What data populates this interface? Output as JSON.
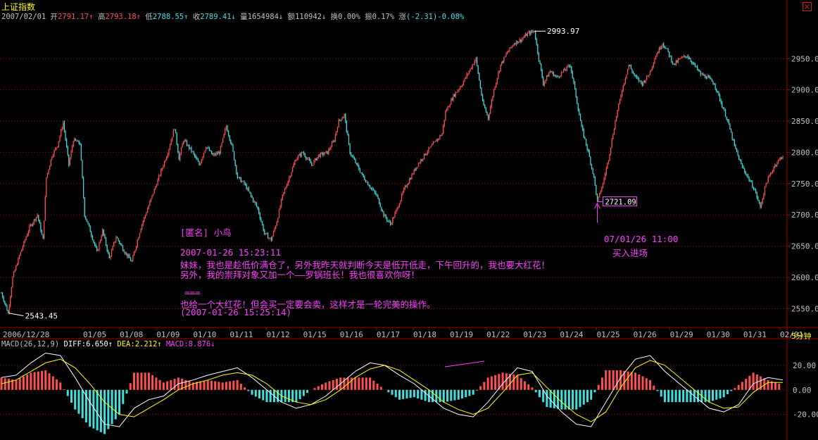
{
  "window": {
    "title": "上证指数"
  },
  "info_bar": {
    "date": "2007/02/01",
    "open_label": "开",
    "open": "2791.17↑",
    "high_label": "高",
    "high": "2793.18↑",
    "low_label": "低",
    "low": "2788.55↑",
    "close_label": "收",
    "close": "2789.41↓",
    "volume_label": "量",
    "volume": "1654984↓",
    "amount_label": "额",
    "amount": "110942↓",
    "turnover_label": "换",
    "turnover": "0.00%",
    "amplitude_label": "振",
    "amplitude": "0.17%",
    "change_label": "涨",
    "change": "(-2.31)-0.08%"
  },
  "period_label": "5分钟",
  "price_labels": {
    "high": "2993.97",
    "low": "2543.45",
    "marked": "2721.09"
  },
  "annotations": {
    "buy_time": "07/01/26 11:00",
    "buy_text": "买入进场",
    "author": "[匿名] 小鸟",
    "post_time": "2007-01-26 15:23:11",
    "line1": "妹妹，我也是趁低价满仓了，另外我昨天就判断今天是低开低走，下午回升的，我也要大红花！",
    "line2": "另外，我的崇拜对象又加一个——罗锅班长！我也很喜欢你呀！",
    "separator": "===",
    "line3": "也给一个大红花！但会买一定要会卖，这样才是一轮完美的操作。",
    "reply_time": "(2007-01-26 15:25:14)"
  },
  "macd_header": {
    "params": "MACD(26,12,9)",
    "diff_label": "DIFF:",
    "diff": "6.650↑",
    "dea_label": "DEA:",
    "dea": "2.212↑",
    "macd_label": "MACD:",
    "macd": "8.876↓"
  },
  "colors": {
    "up": "#ff5050",
    "down": "#40e0e0",
    "grid": "#a00000",
    "diff_line": "#ffffff",
    "dea_line": "#ffff00",
    "annotation": "#ff40ff",
    "axis_text": "#c0c0c0"
  },
  "chart_data": [
    {
      "type": "candlestick",
      "title": "上证指数",
      "x_tick_labels": [
        "2006/12/28",
        "01/05",
        "01/08",
        "01/09",
        "01/10",
        "01/11",
        "01/12",
        "01/15",
        "01/16",
        "01/17",
        "01/18",
        "01/19",
        "01/22",
        "01/23",
        "01/24",
        "01/25",
        "01/26",
        "01/29",
        "01/30",
        "01/31",
        "02/01"
      ],
      "y_tick_labels": [
        "2550.00",
        "2600.00",
        "2650.00",
        "2700.00",
        "2750.00",
        "2800.00",
        "2850.00",
        "2900.00",
        "2950.00"
      ],
      "ylim": [
        2520,
        3010
      ],
      "grid": true,
      "close_path": [
        {
          "x": 0,
          "y": 2575
        },
        {
          "x": 6,
          "y": 2543
        },
        {
          "x": 10,
          "y": 2600
        },
        {
          "x": 17,
          "y": 2640
        },
        {
          "x": 25,
          "y": 2680
        },
        {
          "x": 32,
          "y": 2700
        },
        {
          "x": 37,
          "y": 2660
        },
        {
          "x": 40,
          "y": 2760
        },
        {
          "x": 45,
          "y": 2795
        },
        {
          "x": 50,
          "y": 2812
        },
        {
          "x": 55,
          "y": 2848
        },
        {
          "x": 60,
          "y": 2780
        },
        {
          "x": 64,
          "y": 2820
        },
        {
          "x": 70,
          "y": 2814
        },
        {
          "x": 74,
          "y": 2700
        },
        {
          "x": 78,
          "y": 2680
        },
        {
          "x": 85,
          "y": 2640
        },
        {
          "x": 90,
          "y": 2675
        },
        {
          "x": 96,
          "y": 2630
        },
        {
          "x": 102,
          "y": 2665
        },
        {
          "x": 110,
          "y": 2640
        },
        {
          "x": 116,
          "y": 2625
        },
        {
          "x": 124,
          "y": 2680
        },
        {
          "x": 132,
          "y": 2720
        },
        {
          "x": 140,
          "y": 2760
        },
        {
          "x": 148,
          "y": 2800
        },
        {
          "x": 154,
          "y": 2840
        },
        {
          "x": 158,
          "y": 2790
        },
        {
          "x": 162,
          "y": 2820
        },
        {
          "x": 170,
          "y": 2800
        },
        {
          "x": 176,
          "y": 2780
        },
        {
          "x": 182,
          "y": 2810
        },
        {
          "x": 188,
          "y": 2795
        },
        {
          "x": 194,
          "y": 2800
        },
        {
          "x": 200,
          "y": 2842
        },
        {
          "x": 205,
          "y": 2810
        },
        {
          "x": 210,
          "y": 2760
        },
        {
          "x": 216,
          "y": 2750
        },
        {
          "x": 222,
          "y": 2730
        },
        {
          "x": 228,
          "y": 2710
        },
        {
          "x": 234,
          "y": 2670
        },
        {
          "x": 240,
          "y": 2660
        },
        {
          "x": 245,
          "y": 2690
        },
        {
          "x": 250,
          "y": 2730
        },
        {
          "x": 255,
          "y": 2755
        },
        {
          "x": 262,
          "y": 2790
        },
        {
          "x": 268,
          "y": 2800
        },
        {
          "x": 276,
          "y": 2780
        },
        {
          "x": 282,
          "y": 2795
        },
        {
          "x": 290,
          "y": 2800
        },
        {
          "x": 296,
          "y": 2820
        },
        {
          "x": 300,
          "y": 2850
        },
        {
          "x": 305,
          "y": 2860
        },
        {
          "x": 310,
          "y": 2800
        },
        {
          "x": 316,
          "y": 2780
        },
        {
          "x": 322,
          "y": 2760
        },
        {
          "x": 328,
          "y": 2745
        },
        {
          "x": 334,
          "y": 2730
        },
        {
          "x": 340,
          "y": 2700
        },
        {
          "x": 346,
          "y": 2685
        },
        {
          "x": 352,
          "y": 2710
        },
        {
          "x": 358,
          "y": 2740
        },
        {
          "x": 364,
          "y": 2760
        },
        {
          "x": 370,
          "y": 2780
        },
        {
          "x": 378,
          "y": 2800
        },
        {
          "x": 385,
          "y": 2815
        },
        {
          "x": 392,
          "y": 2830
        },
        {
          "x": 395,
          "y": 2865
        },
        {
          "x": 402,
          "y": 2890
        },
        {
          "x": 410,
          "y": 2910
        },
        {
          "x": 416,
          "y": 2930
        },
        {
          "x": 422,
          "y": 2950
        },
        {
          "x": 428,
          "y": 2880
        },
        {
          "x": 433,
          "y": 2855
        },
        {
          "x": 438,
          "y": 2900
        },
        {
          "x": 444,
          "y": 2940
        },
        {
          "x": 450,
          "y": 2960
        },
        {
          "x": 456,
          "y": 2975
        },
        {
          "x": 462,
          "y": 2980
        },
        {
          "x": 468,
          "y": 2990
        },
        {
          "x": 474,
          "y": 2994
        },
        {
          "x": 478,
          "y": 2950
        },
        {
          "x": 482,
          "y": 2910
        },
        {
          "x": 488,
          "y": 2930
        },
        {
          "x": 494,
          "y": 2920
        },
        {
          "x": 500,
          "y": 2930
        },
        {
          "x": 506,
          "y": 2940
        },
        {
          "x": 512,
          "y": 2880
        },
        {
          "x": 516,
          "y": 2840
        },
        {
          "x": 522,
          "y": 2800
        },
        {
          "x": 527,
          "y": 2760
        },
        {
          "x": 530,
          "y": 2721
        },
        {
          "x": 535,
          "y": 2750
        },
        {
          "x": 540,
          "y": 2790
        },
        {
          "x": 546,
          "y": 2850
        },
        {
          "x": 552,
          "y": 2900
        },
        {
          "x": 558,
          "y": 2940
        },
        {
          "x": 564,
          "y": 2920
        },
        {
          "x": 570,
          "y": 2910
        },
        {
          "x": 576,
          "y": 2925
        },
        {
          "x": 582,
          "y": 2955
        },
        {
          "x": 588,
          "y": 2975
        },
        {
          "x": 593,
          "y": 2960
        },
        {
          "x": 598,
          "y": 2940
        },
        {
          "x": 604,
          "y": 2950
        },
        {
          "x": 610,
          "y": 2955
        },
        {
          "x": 616,
          "y": 2940
        },
        {
          "x": 622,
          "y": 2925
        },
        {
          "x": 628,
          "y": 2920
        },
        {
          "x": 634,
          "y": 2910
        },
        {
          "x": 640,
          "y": 2880
        },
        {
          "x": 646,
          "y": 2850
        },
        {
          "x": 652,
          "y": 2810
        },
        {
          "x": 658,
          "y": 2780
        },
        {
          "x": 664,
          "y": 2760
        },
        {
          "x": 670,
          "y": 2740
        },
        {
          "x": 675,
          "y": 2712
        },
        {
          "x": 680,
          "y": 2750
        },
        {
          "x": 688,
          "y": 2780
        },
        {
          "x": 695,
          "y": 2795
        }
      ],
      "x_max": 695,
      "annotations": [
        {
          "text": "2993.97",
          "x": 474,
          "y": 2994
        },
        {
          "text": "2543.45",
          "x": 6,
          "y": 2543
        },
        {
          "text": "2721.09",
          "x": 530,
          "y": 2721
        }
      ]
    },
    {
      "type": "bar",
      "title": "MACD(26,12,9)",
      "y_tick_labels": [
        "20.00",
        "0.00",
        "-20.00"
      ],
      "ylim": [
        -38,
        32
      ],
      "series": [
        {
          "name": "DIFF",
          "values": [
            10,
            12,
            22,
            30,
            28,
            10,
            -10,
            -28,
            -30,
            -15,
            -8,
            -5,
            5,
            8,
            12,
            15,
            18,
            10,
            0,
            -10,
            -15,
            -12,
            -5,
            5,
            15,
            22,
            20,
            12,
            5,
            -5,
            -15,
            -20,
            -22,
            -10,
            5,
            18,
            15,
            -5,
            -18,
            -28,
            -30,
            -10,
            10,
            25,
            28,
            15,
            5,
            -5,
            -15,
            -18,
            -12,
            5,
            10,
            8
          ]
        },
        {
          "name": "DEA",
          "values": [
            5,
            8,
            15,
            22,
            25,
            18,
            5,
            -10,
            -20,
            -22,
            -15,
            -8,
            0,
            5,
            8,
            12,
            14,
            12,
            5,
            -5,
            -10,
            -12,
            -8,
            0,
            10,
            17,
            20,
            16,
            8,
            0,
            -10,
            -16,
            -20,
            -15,
            -2,
            12,
            14,
            2,
            -10,
            -20,
            -26,
            -18,
            2,
            18,
            24,
            20,
            10,
            0,
            -10,
            -15,
            -14,
            -2,
            6,
            6
          ]
        },
        {
          "name": "MACD",
          "values": [
            10,
            8,
            14,
            16,
            6,
            -16,
            -30,
            -36,
            -20,
            14,
            14,
            6,
            10,
            6,
            8,
            6,
            8,
            -4,
            -10,
            -10,
            -10,
            0,
            6,
            10,
            10,
            10,
            0,
            -8,
            -6,
            -10,
            -10,
            -8,
            -4,
            10,
            14,
            12,
            2,
            -14,
            -16,
            -16,
            -8,
            16,
            16,
            14,
            8,
            -10,
            -10,
            -10,
            -10,
            -6,
            4,
            14,
            8,
            4
          ]
        }
      ]
    }
  ]
}
